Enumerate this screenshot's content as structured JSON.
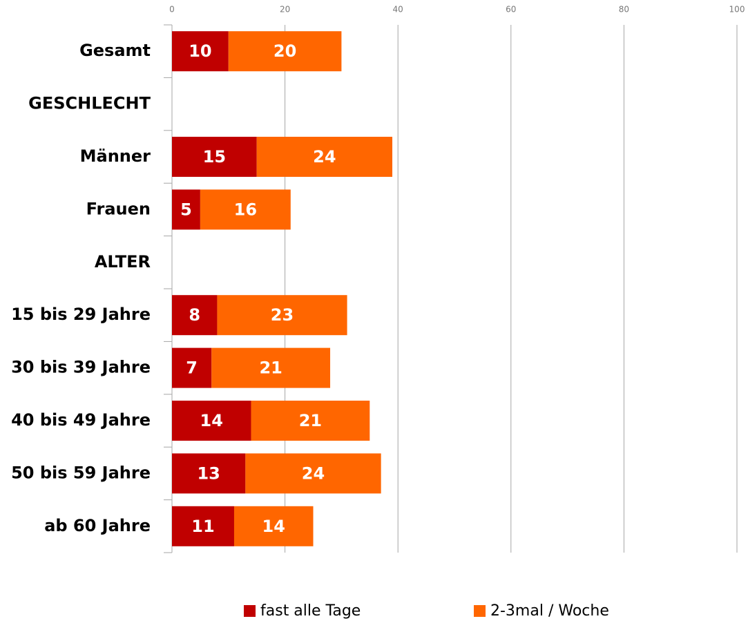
{
  "chart_data": {
    "type": "bar",
    "orientation": "horizontal",
    "stacked": true,
    "categories": [
      "Gesamt",
      "GESCHLECHT",
      "Männer",
      "Frauen",
      "ALTER",
      "15 bis 29 Jahre",
      "30 bis 39 Jahre",
      "40 bis 49 Jahre",
      "50 bis 59 Jahre",
      "ab 60 Jahre"
    ],
    "series": [
      {
        "name": "fast alle Tage",
        "color": "#c00000",
        "values": [
          10,
          null,
          15,
          5,
          null,
          8,
          7,
          14,
          13,
          11
        ]
      },
      {
        "name": "2-3mal / Woche",
        "color": "#ff6600",
        "values": [
          20,
          null,
          24,
          16,
          null,
          23,
          21,
          21,
          24,
          14
        ]
      }
    ],
    "xlim": [
      0,
      100
    ],
    "xticks": [
      0,
      20,
      40,
      60,
      80,
      100
    ],
    "grid": true,
    "legend": "bottom"
  }
}
